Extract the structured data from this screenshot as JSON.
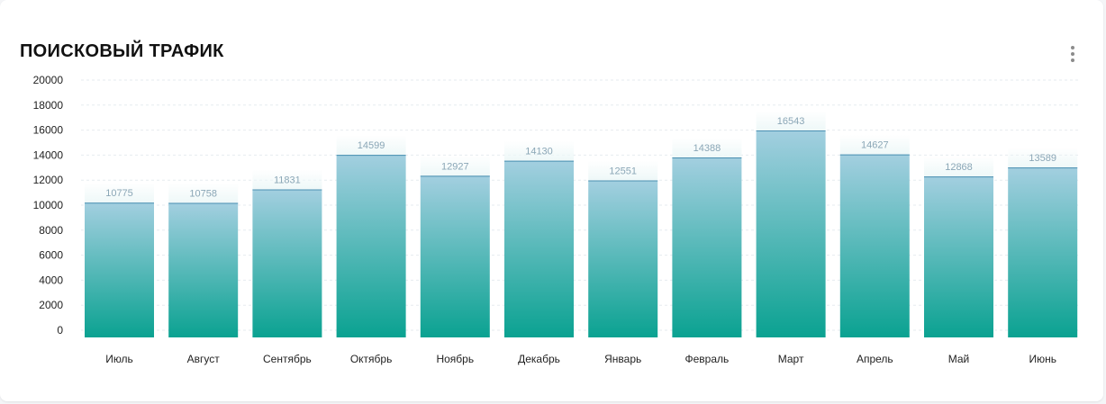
{
  "card": {
    "title": "ПОИСКОВЫЙ ТРАФИК",
    "menu_icon": "more-vertical-icon"
  },
  "colors": {
    "bar_top": "#a3cfe0",
    "bar_bottom": "#0aa291",
    "ghost": "#eef8f8",
    "value_label": "#8aa6b6",
    "grid": "#e6ebef",
    "axis_text": "#222222"
  },
  "chart_data": {
    "type": "bar",
    "title": "ПОИСКОВЫЙ ТРАФИК",
    "xlabel": "",
    "ylabel": "",
    "categories": [
      "Июль",
      "Август",
      "Сентябрь",
      "Октябрь",
      "Ноябрь",
      "Декабрь",
      "Январь",
      "Февраль",
      "Март",
      "Апрель",
      "Май",
      "Июнь"
    ],
    "values": [
      10775,
      10758,
      11831,
      14599,
      12927,
      14130,
      12551,
      14388,
      16543,
      14627,
      12868,
      13589
    ],
    "yticks": [
      "20000",
      "18000",
      "16000",
      "14000",
      "12000",
      "10000",
      "8000",
      "6000",
      "4000",
      "2000",
      "0"
    ],
    "ylim": [
      0,
      20000
    ],
    "grid": true,
    "legend": "none"
  }
}
